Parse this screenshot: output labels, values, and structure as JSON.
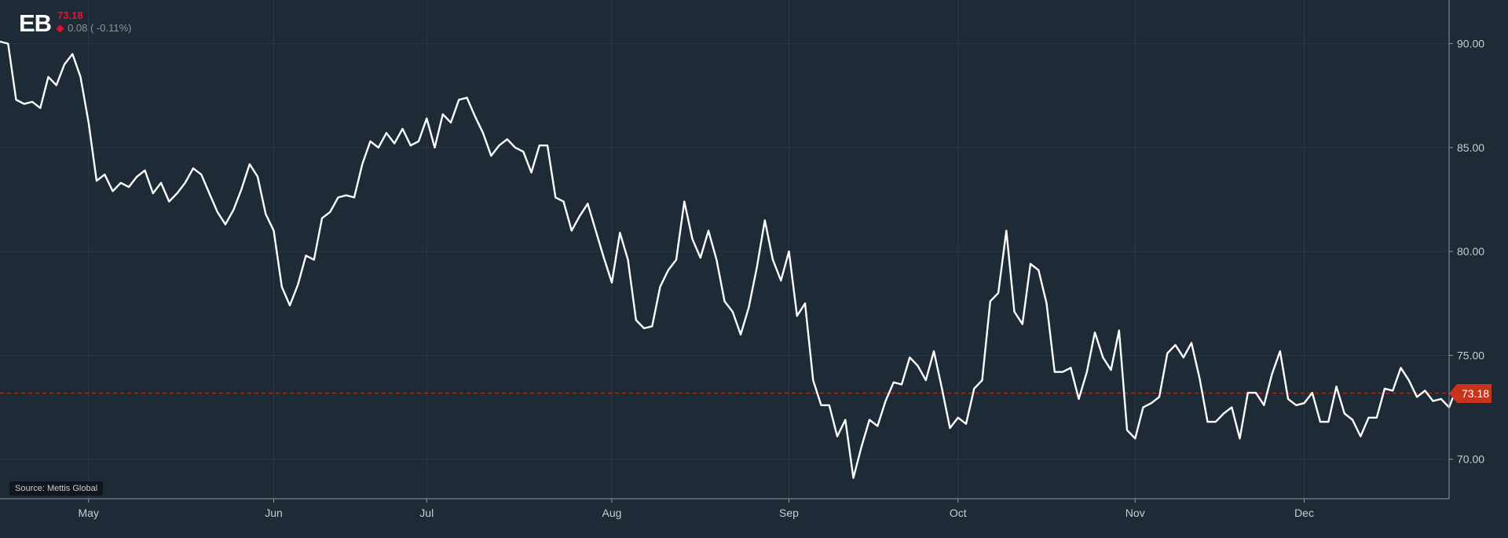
{
  "ticker": {
    "symbol": "EB",
    "price": "73.18",
    "change": "0.08 ( -0.11%)",
    "direction_icon": "diamond-down-icon"
  },
  "source": "Source: Mettis Global",
  "last_value_label": "73.18",
  "colors": {
    "background": "#1e2a36",
    "line": "#ffffff",
    "grid": "#2b3945",
    "last_price_line": "#c8341b",
    "accent_red": "#e8102e"
  },
  "chart_data": {
    "type": "line",
    "title": "",
    "xlabel": "",
    "ylabel": "",
    "ylim": [
      68.1,
      92.1
    ],
    "yticks": [
      70,
      75,
      80,
      85,
      90
    ],
    "ytick_labels": [
      "70.00",
      "75.00",
      "80.00",
      "85.00",
      "90.00"
    ],
    "x_index_range": [
      0,
      180
    ],
    "xticks": [
      {
        "label": "May",
        "index": 11
      },
      {
        "label": "Jun",
        "index": 34
      },
      {
        "label": "Jul",
        "index": 53
      },
      {
        "label": "Aug",
        "index": 76
      },
      {
        "label": "Sep",
        "index": 98
      },
      {
        "label": "Oct",
        "index": 119
      },
      {
        "label": "Nov",
        "index": 141
      },
      {
        "label": "Dec",
        "index": 162
      }
    ],
    "last_value": 73.18,
    "grid": true,
    "series": [
      {
        "values": [
          90.1,
          90.0,
          87.3,
          87.1,
          87.2,
          86.9,
          88.4,
          88.0,
          89.0,
          89.5,
          88.4,
          86.2,
          83.4,
          83.7,
          82.9,
          83.3,
          83.1,
          83.6,
          83.9,
          82.8,
          83.3,
          82.4,
          82.8,
          83.3,
          84.0,
          83.7,
          82.8,
          81.9,
          81.3,
          82.0,
          83.0,
          84.2,
          83.6,
          81.8,
          81.0,
          78.3,
          77.4,
          78.4,
          79.8,
          79.6,
          81.6,
          81.9,
          82.6,
          82.7,
          82.6,
          84.2,
          85.3,
          85.0,
          85.7,
          85.2,
          85.9,
          85.1,
          85.3,
          86.4,
          85.0,
          86.6,
          86.2,
          87.3,
          87.4,
          86.5,
          85.7,
          84.6,
          85.1,
          85.4,
          85.0,
          84.8,
          83.8,
          85.1,
          85.1,
          82.6,
          82.4,
          81.0,
          81.7,
          82.3,
          81.0,
          79.7,
          78.5,
          80.9,
          79.6,
          76.7,
          76.3,
          76.4,
          78.3,
          79.1,
          79.6,
          82.4,
          80.6,
          79.7,
          81.0,
          79.6,
          77.6,
          77.1,
          76.0,
          77.3,
          79.2,
          81.5,
          79.6,
          78.6,
          80.0,
          76.9,
          77.5,
          73.8,
          72.6,
          72.6,
          71.1,
          71.9,
          69.1,
          70.6,
          71.9,
          71.6,
          72.8,
          73.7,
          73.6,
          74.9,
          74.5,
          73.8,
          75.2,
          73.4,
          71.5,
          72.0,
          71.7,
          73.4,
          73.8,
          77.6,
          78.0,
          81.0,
          77.1,
          76.5,
          79.4,
          79.1,
          77.5,
          74.2,
          74.2,
          74.4,
          72.9,
          74.2,
          76.1,
          74.9,
          74.3,
          76.2,
          71.4,
          71.0,
          72.5,
          72.7,
          73.0,
          75.1,
          75.5,
          74.9,
          75.6,
          73.9,
          71.8,
          71.8,
          72.2,
          72.5,
          71.0,
          73.2,
          73.2,
          72.6,
          74.1,
          75.2,
          72.9,
          72.6,
          72.7,
          73.2,
          71.8,
          71.8,
          73.5,
          72.2,
          71.9,
          71.1,
          72.0,
          72.0,
          73.4,
          73.3,
          74.4,
          73.8,
          73.0,
          73.3,
          72.8,
          72.9,
          72.5,
          73.5,
          73.2,
          73.18
        ]
      }
    ]
  }
}
